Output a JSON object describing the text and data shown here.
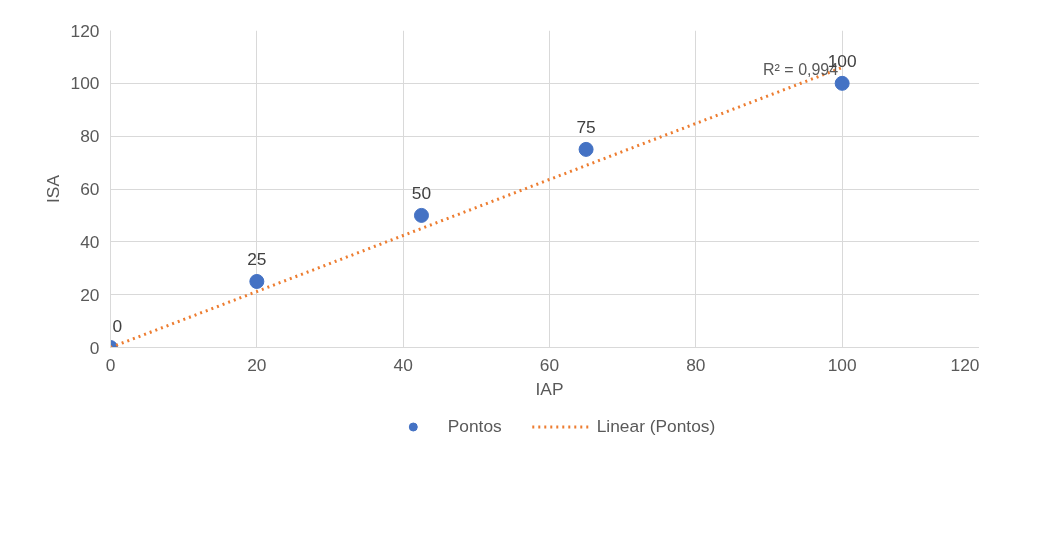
{
  "chart_data": {
    "type": "scatter",
    "xlabel": "IAP",
    "ylabel": "ISA",
    "xlim": [
      0,
      120
    ],
    "xticks": [
      0,
      20,
      40,
      60,
      80,
      100,
      120
    ],
    "ylim": [
      0,
      120
    ],
    "yticks": [
      0,
      20,
      40,
      60,
      80,
      100,
      120
    ],
    "grid": true,
    "legend": "bottom",
    "series": [
      {
        "name": "Pontos",
        "color": "#4472c4",
        "x": [
          0,
          20,
          42.5,
          65,
          100
        ],
        "values": [
          0,
          25,
          50,
          75,
          100
        ],
        "marker": "circle",
        "data_labels": true
      },
      {
        "name": "Linear (Pontos)",
        "type": "line",
        "color": "#ed7d31",
        "x": [
          0,
          100
        ],
        "values": [
          0,
          106
        ],
        "line_style": "dotted"
      }
    ],
    "annotations": [
      "R² = 0,994"
    ]
  }
}
